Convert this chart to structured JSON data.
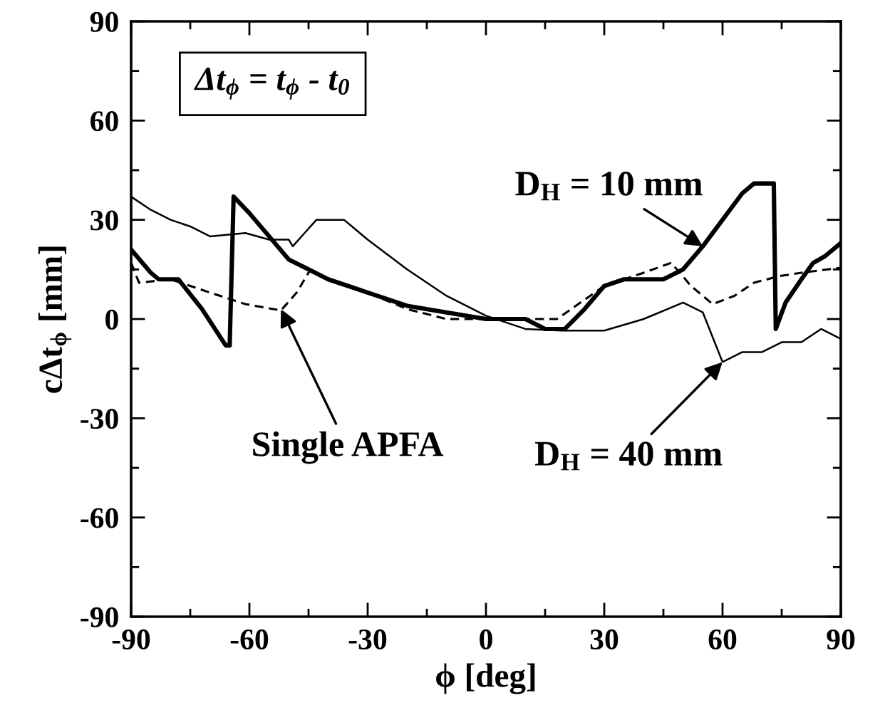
{
  "chart_data": {
    "type": "line",
    "xlabel": "ϕ [deg]",
    "ylabel": "cΔt$_{ϕ}$ [mm]",
    "xlim": [
      -90,
      90
    ],
    "ylim": [
      -90,
      90
    ],
    "xticks": [
      -90,
      -60,
      -30,
      0,
      30,
      60,
      90
    ],
    "yticks": [
      -90,
      -60,
      -30,
      0,
      30,
      60,
      90
    ],
    "grid": false,
    "legend": false,
    "marker": "none",
    "series": [
      {
        "color": "#000000",
        "line_style": "solid",
        "x": [
          -90,
          -85,
          -83,
          -78,
          -72,
          -66,
          -65,
          -64,
          -60,
          -55,
          -50,
          -45,
          -40,
          -30,
          -20,
          -10,
          0,
          10,
          15,
          20,
          25,
          30,
          35,
          45,
          50,
          55,
          60,
          65,
          68,
          73,
          73.5,
          76,
          80,
          83,
          86,
          90
        ],
        "values": [
          21,
          14,
          12,
          12,
          3,
          -8,
          -8,
          37,
          32,
          25,
          18,
          15,
          12,
          8,
          4,
          2,
          0,
          0,
          -3,
          -3,
          3,
          10,
          12,
          12,
          15,
          22,
          30,
          38,
          41,
          41,
          -3,
          5,
          12,
          17,
          19,
          23
        ]
      },
      {
        "color": "#000000",
        "line_style": "solid",
        "x": [
          -90,
          -85,
          -80,
          -75,
          -70,
          -61,
          -55,
          -50,
          -49,
          -46,
          -43,
          -36,
          -30,
          -20,
          -10,
          0,
          10,
          19,
          30,
          40,
          50,
          55,
          58,
          60,
          65,
          70,
          75,
          80,
          85,
          90
        ],
        "values": [
          37,
          33,
          30,
          28,
          25,
          26,
          24,
          24,
          22,
          26,
          30,
          30,
          24,
          15,
          7,
          1,
          -3,
          -3.5,
          -3.5,
          0,
          5,
          2,
          -7,
          -13,
          -10,
          -10,
          -7,
          -7,
          -3,
          -6
        ]
      },
      {
        "color": "#000000",
        "line_style": "dashed",
        "x": [
          -90,
          -88,
          -80,
          -75,
          -70,
          -61,
          -52,
          -48,
          -44.5,
          -40,
          -30,
          -20,
          -10,
          0,
          7,
          18,
          30,
          40,
          47,
          52,
          57.5,
          63,
          68,
          74.5,
          80,
          90
        ],
        "values": [
          17,
          11,
          12,
          10,
          8,
          4.5,
          2.6,
          8,
          15,
          12,
          8,
          3,
          0,
          0,
          0,
          0,
          10,
          14,
          17,
          10,
          4.5,
          7,
          11,
          13,
          14,
          15.5
        ]
      }
    ],
    "annotations": [
      "Δt$_{ϕ}$ = t$_{ϕ}$ - t$_{0}$",
      {
        "text": "D$_{H}$ = 10 mm",
        "x": 55,
        "y": 22
      },
      {
        "text": "Single APFA",
        "x": -52,
        "y": 3
      },
      {
        "text": "D$_{H}$ = 40 mm",
        "x": 60,
        "y": -13
      }
    ]
  }
}
